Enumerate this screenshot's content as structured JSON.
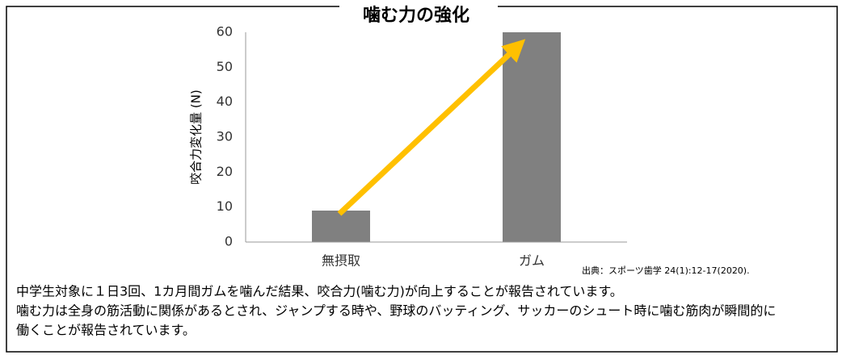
{
  "chart_data": {
    "type": "bar",
    "title": "噛む力の強化",
    "y_label": "咬合力変化量 (N)",
    "categories": [
      "無摂取",
      "ガム"
    ],
    "values": [
      9,
      60
    ],
    "color": "#808080",
    "ylim": [
      0,
      60
    ],
    "yticks": [
      0,
      10,
      20,
      30,
      40,
      50,
      60
    ],
    "grid": false,
    "source": "出典：スポーツ歯学 24(1):12-17(2020).",
    "description": [
      "中学生対象に１日3回、1カ月間ガムを噛んだ結果、咬合力(噛む力)が向上することが報告されています。",
      "噛む力は全身の筋活動に関係があるとされ、ジャンプする時や、野球のバッティング、サッカーのシュート時に噛む筋肉が瞬間的に",
      "働くことが報告されています。"
    ]
  }
}
